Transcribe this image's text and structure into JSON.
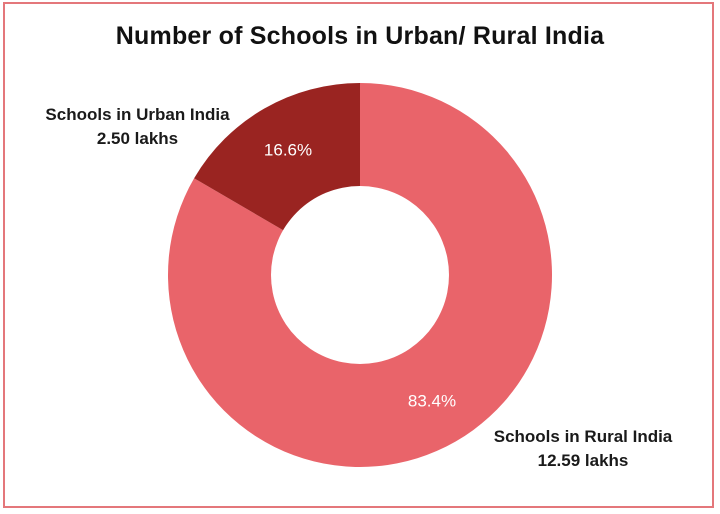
{
  "chart_data": {
    "type": "pie",
    "donut": true,
    "title": "Number of Schools in Urban/ Rural India",
    "slices": [
      {
        "name": "Schools in Urban India",
        "value_text": "2.50 lakhs",
        "value": 2.5,
        "percent": 16.6,
        "percent_label": "16.6%",
        "color": "#9a2421"
      },
      {
        "name": "Schools in Rural India",
        "value_text": "12.59 lakhs",
        "value": 12.59,
        "percent": 83.4,
        "percent_label": "83.4%",
        "color": "#e9646a"
      }
    ],
    "legend": "none",
    "start_angle": "top, clockwise with rural slice first"
  },
  "colors": {
    "border": "#e4777b",
    "hole": "#ffffff"
  }
}
